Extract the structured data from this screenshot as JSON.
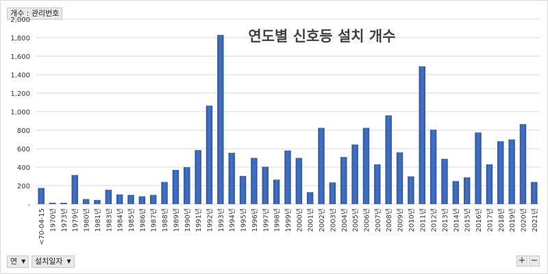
{
  "field_buttons": {
    "value_field": "개수 : 관리번호",
    "row_field_1": "연",
    "row_field_2": "설치일자"
  },
  "zoom": {
    "plus": "+",
    "minus": "−"
  },
  "chart_data": {
    "type": "bar",
    "title": "연도별 신호등 설치 개수",
    "xlabel": "",
    "ylabel": "",
    "ylim": [
      0,
      2000
    ],
    "yticks": [
      "-",
      "200",
      "400",
      "600",
      "800",
      "1,000",
      "1,200",
      "1,400",
      "1,600",
      "1,800",
      "2,000"
    ],
    "grid": true,
    "bar_color": "#4472c4",
    "categories": [
      "<70-04-15",
      "1970년",
      "1973년",
      "1979년",
      "1980년",
      "1981년",
      "1983년",
      "1984년",
      "1985년",
      "1986년",
      "1987년",
      "1988년",
      "1989년",
      "1990년",
      "1991년",
      "1992년",
      "1993년",
      "1994년",
      "1995년",
      "1996년",
      "1997년",
      "1998년",
      "1999년",
      "2000년",
      "2001년",
      "2002년",
      "2003년",
      "2004년",
      "2005년",
      "2006년",
      "2007년",
      "2008년",
      "2009년",
      "2010년",
      "2011년",
      "2012년",
      "2013년",
      "2014년",
      "2015년",
      "2016년",
      "2017년",
      "2018년",
      "2019년",
      "2020년",
      "2021년"
    ],
    "values": [
      175,
      15,
      15,
      315,
      55,
      45,
      155,
      105,
      100,
      85,
      100,
      240,
      370,
      400,
      585,
      1065,
      1830,
      555,
      305,
      500,
      405,
      265,
      580,
      500,
      130,
      825,
      235,
      510,
      645,
      825,
      430,
      960,
      560,
      300,
      1490,
      805,
      490,
      250,
      290,
      775,
      430,
      680,
      700,
      865,
      240
    ]
  }
}
